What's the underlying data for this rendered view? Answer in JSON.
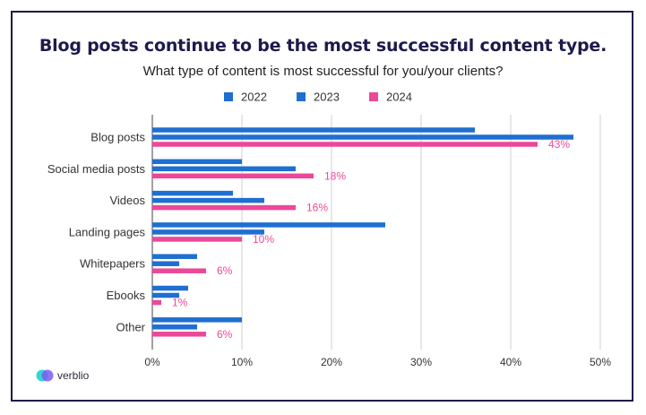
{
  "chart_data": {
    "type": "bar",
    "orientation": "horizontal",
    "title": "Blog posts continue to be the most successful content type.",
    "subtitle": "What type of content is most successful for you/your clients?",
    "categories": [
      "Blog posts",
      "Social media posts",
      "Videos",
      "Landing pages",
      "Whitepapers",
      "Ebooks",
      "Other"
    ],
    "series": [
      {
        "name": "2022",
        "color": "#1f6fd1",
        "values": [
          36,
          10,
          9,
          26,
          5,
          4,
          10
        ]
      },
      {
        "name": "2023",
        "color": "#1f6fd1",
        "values": [
          47,
          16,
          12.5,
          12.5,
          3,
          3,
          5
        ]
      },
      {
        "name": "2024",
        "color": "#ec4899",
        "values": [
          43,
          18,
          16,
          10,
          6,
          1,
          6
        ]
      }
    ],
    "data_labels": {
      "series": "2024",
      "labels": [
        "43%",
        "18%",
        "16%",
        "10%",
        "6%",
        "1%",
        "6%"
      ]
    },
    "x_ticks": [
      "0%",
      "10%",
      "20%",
      "30%",
      "40%",
      "50%"
    ],
    "xlim": [
      0,
      50
    ],
    "grid": true,
    "legend_position": "top"
  },
  "brand": {
    "name": "verblio"
  }
}
